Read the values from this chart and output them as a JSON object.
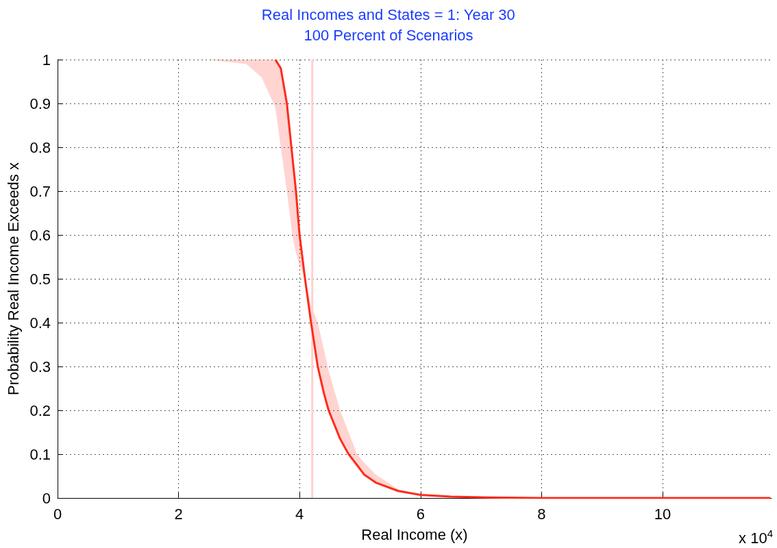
{
  "chart_data": {
    "type": "line",
    "title": "Real Incomes and States = 1: Year 30",
    "subtitle": "100 Percent of Scenarios",
    "xlabel": "Real Income (x)",
    "ylabel": "Probability Real Income Exceeds x",
    "annotations": [
      "x 10$^{4}$"
    ],
    "x": [
      2.47,
      3.12,
      3.37,
      3.57,
      3.6,
      3.69,
      3.79,
      3.88,
      3.94,
      4.0,
      4.09,
      4.19,
      4.3,
      4.4,
      4.48,
      4.67,
      4.81,
      4.95,
      5.07,
      5.26,
      5.63,
      6.0,
      6.5,
      7.13,
      8.0,
      11.78
    ],
    "series": [
      {
        "color": "#ff2a1a",
        "values": [
          null,
          null,
          null,
          null,
          1,
          0.98,
          0.9,
          0.78,
          0.7,
          0.6,
          0.5,
          0.4,
          0.3,
          0.24,
          0.2,
          0.135,
          0.1,
          0.075,
          0.053,
          0.035,
          0.016,
          0.007,
          0.003,
          0.001,
          0,
          0
        ],
        "lower": [
          1,
          0.99,
          0.96,
          0.9,
          0.89,
          0.8,
          0.7,
          0.6,
          0.56,
          0.53,
          0.5,
          0.4,
          0.3,
          0.24,
          0.2,
          0.135,
          0.1,
          0.075,
          0.053,
          0.035,
          0.016,
          0.007,
          0.003,
          0.001,
          0,
          0
        ],
        "upper": [
          1,
          1,
          1,
          1,
          1,
          0.98,
          0.9,
          0.78,
          0.7,
          0.6,
          0.5,
          0.44,
          0.4,
          0.34,
          0.29,
          0.2,
          0.15,
          0.1,
          0.08,
          0.053,
          0.02,
          0.007,
          0.003,
          0.001,
          0,
          0
        ]
      }
    ],
    "ref_lines": [
      {
        "axis": "x",
        "value": 4.21,
        "label": null,
        "color": "#ffd0d0"
      }
    ],
    "xlim": [
      0,
      11.8
    ],
    "xticks": [
      0,
      2,
      4,
      6,
      8,
      10
    ],
    "ylim": [
      0,
      1
    ],
    "yticks": [
      0,
      0.1,
      0.2,
      0.3,
      0.4,
      0.5,
      0.6,
      0.7,
      0.8,
      0.9,
      1
    ],
    "grid": true,
    "marker": "none",
    "line_style": "solid"
  }
}
